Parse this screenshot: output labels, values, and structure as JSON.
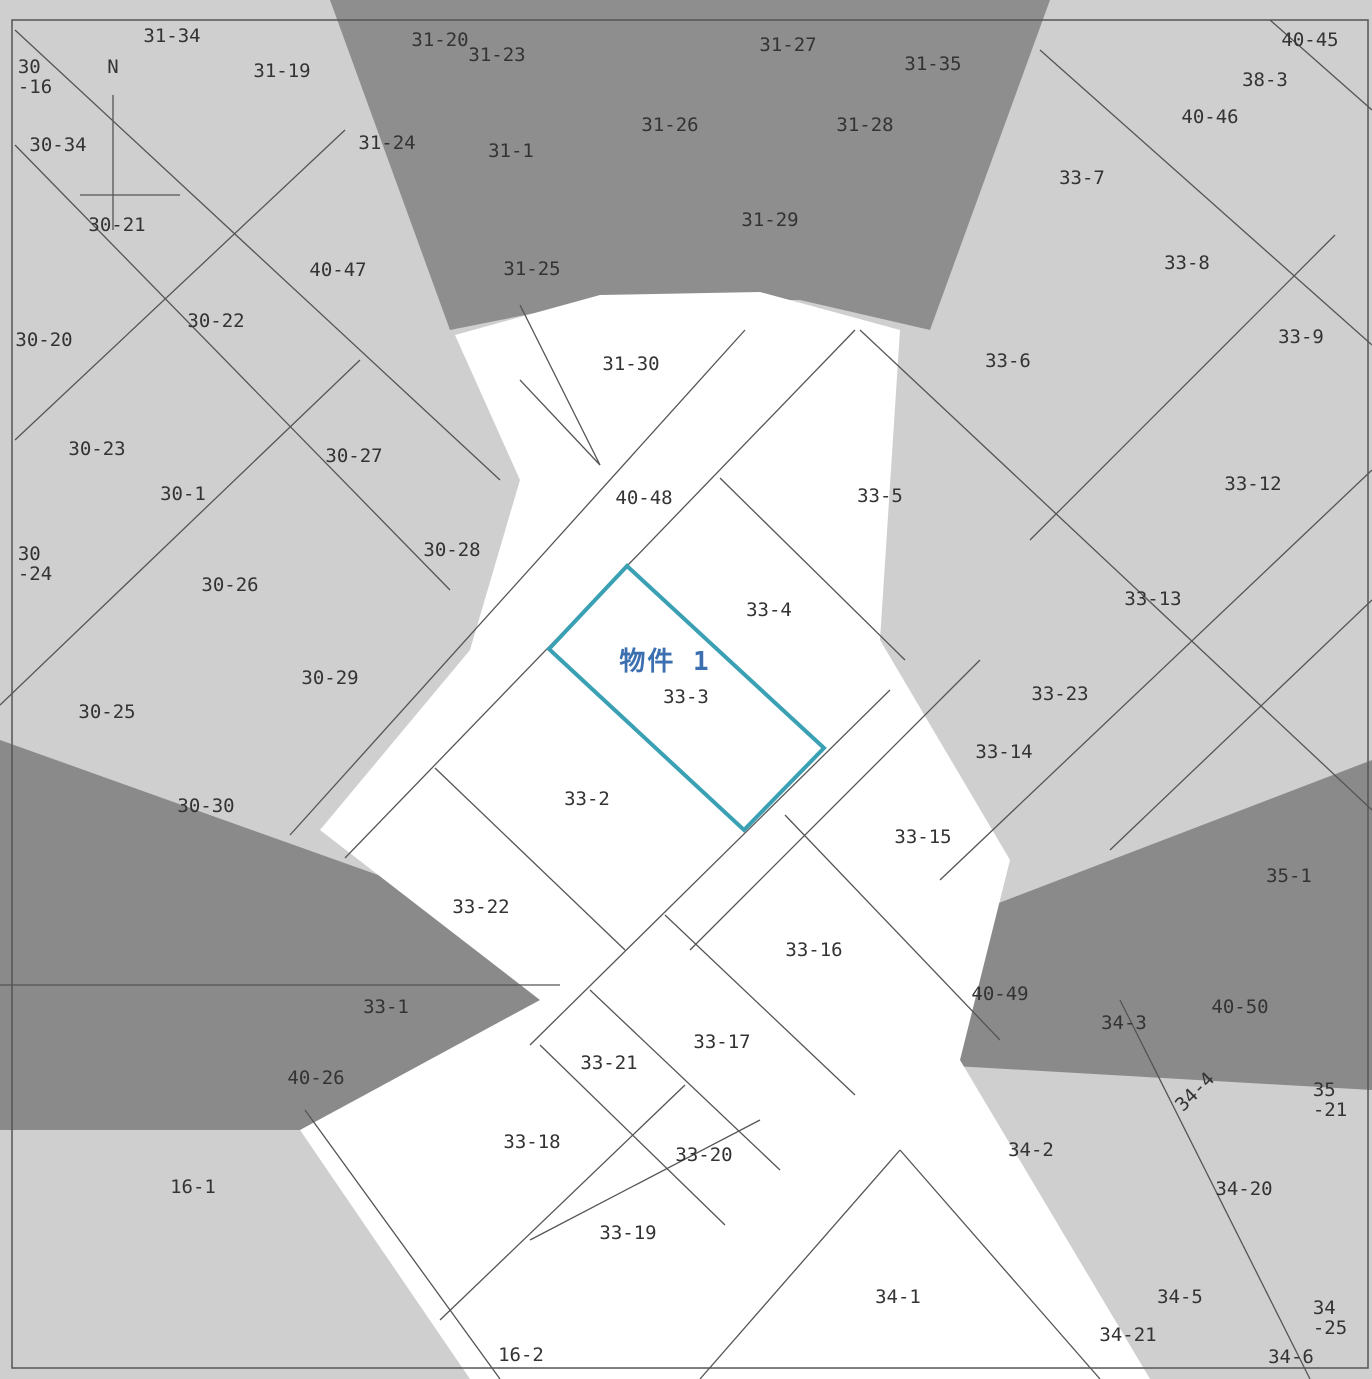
{
  "map": {
    "north_label": "N",
    "subject_label": "物件 1",
    "parcels": [
      "31-34",
      "31-20",
      "31-23",
      "31-27",
      "31-35",
      "40-45",
      "38-3",
      "30\n-16",
      "31-19",
      "30-34",
      "31-24",
      "31-1",
      "31-26",
      "31-28",
      "40-46",
      "33-7",
      "30-21",
      "31-29",
      "33-8",
      "40-47",
      "31-25",
      "30-22",
      "30-20",
      "31-30",
      "33-6",
      "33-9",
      "30-23",
      "30-27",
      "30-1",
      "40-48",
      "33-5",
      "33-12",
      "30\n-24",
      "30-28",
      "30-26",
      "33-4",
      "33-13",
      "33-3",
      "30-29",
      "33-23",
      "30-25",
      "33-14",
      "33-2",
      "30-30",
      "33-15",
      "35-1",
      "33-22",
      "33-16",
      "40-49",
      "40-50",
      "33-1",
      "34-3",
      "33-17",
      "33-21",
      "40-26",
      "34-4",
      "35\n-21",
      "33-18",
      "34-2",
      "33-20",
      "16-1",
      "34-20",
      "33-19",
      "34-1",
      "34-5",
      "34\n-25",
      "34-21",
      "16-2",
      "34-6"
    ]
  }
}
